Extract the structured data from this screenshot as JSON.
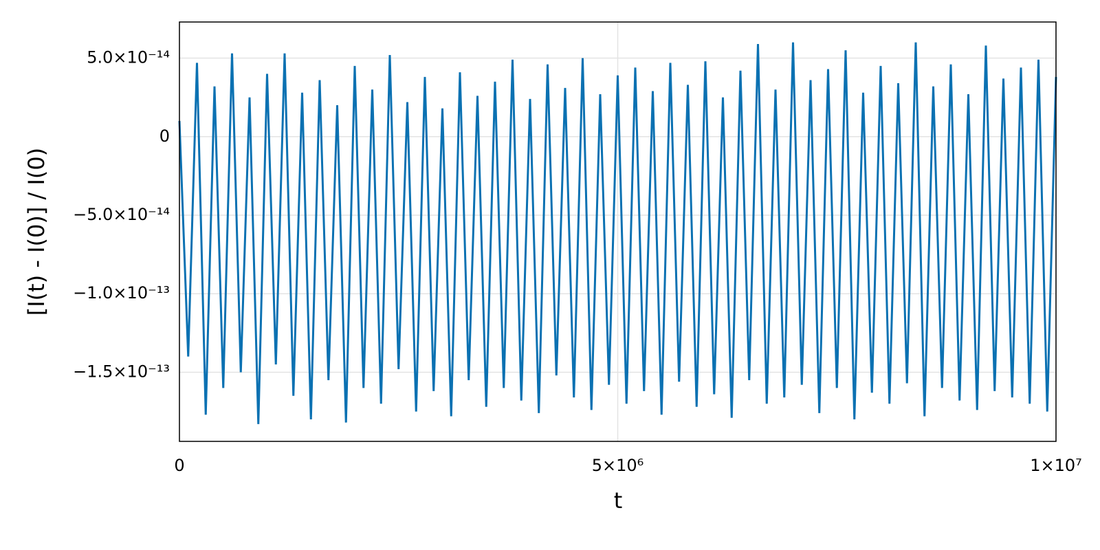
{
  "chart_data": {
    "type": "line",
    "xlabel": "t",
    "ylabel": "[I(t) - I(0)] / I(0)",
    "x": [
      0,
      100000,
      200000,
      300000,
      400000,
      500000,
      600000,
      700000,
      800000,
      900000,
      1000000,
      1100000,
      1200000,
      1300000,
      1400000,
      1500000,
      1600000,
      1700000,
      1800000,
      1900000,
      2000000,
      2100000,
      2200000,
      2300000,
      2400000,
      2500000,
      2600000,
      2700000,
      2800000,
      2900000,
      3000000,
      3100000,
      3200000,
      3300000,
      3400000,
      3500000,
      3600000,
      3700000,
      3800000,
      3900000,
      4000000,
      4100000,
      4200000,
      4300000,
      4400000,
      4500000,
      4600000,
      4700000,
      4800000,
      4900000,
      5000000,
      5100000,
      5200000,
      5300000,
      5400000,
      5500000,
      5600000,
      5700000,
      5800000,
      5900000,
      6000000,
      6100000,
      6200000,
      6300000,
      6400000,
      6500000,
      6600000,
      6700000,
      6800000,
      6900000,
      7000000,
      7100000,
      7200000,
      7300000,
      7400000,
      7500000,
      7600000,
      7700000,
      7800000,
      7900000,
      8000000,
      8100000,
      8200000,
      8300000,
      8400000,
      8500000,
      8600000,
      8700000,
      8800000,
      8900000,
      9000000,
      9100000,
      9200000,
      9300000,
      9400000,
      9500000,
      9600000,
      9700000,
      9800000,
      9900000,
      10000000
    ],
    "series": [
      {
        "color": "#0b71b2",
        "values": [
          1e-14,
          -1.4e-13,
          4.7e-14,
          -1.77e-13,
          3.2e-14,
          -1.6e-13,
          5.3e-14,
          -1.5e-13,
          2.5e-14,
          -1.83e-13,
          4e-14,
          -1.45e-13,
          5.3e-14,
          -1.65e-13,
          2.8e-14,
          -1.8e-13,
          3.6e-14,
          -1.55e-13,
          2e-14,
          -1.82e-13,
          4.5e-14,
          -1.6e-13,
          3e-14,
          -1.7e-13,
          5.2e-14,
          -1.48e-13,
          2.2e-14,
          -1.75e-13,
          3.8e-14,
          -1.62e-13,
          1.8e-14,
          -1.78e-13,
          4.1e-14,
          -1.55e-13,
          2.6e-14,
          -1.72e-13,
          3.5e-14,
          -1.6e-13,
          4.9e-14,
          -1.68e-13,
          2.4e-14,
          -1.76e-13,
          4.6e-14,
          -1.52e-13,
          3.1e-14,
          -1.66e-13,
          5e-14,
          -1.74e-13,
          2.7e-14,
          -1.58e-13,
          3.9e-14,
          -1.7e-13,
          4.4e-14,
          -1.62e-13,
          2.9e-14,
          -1.77e-13,
          4.7e-14,
          -1.56e-13,
          3.3e-14,
          -1.72e-13,
          4.8e-14,
          -1.64e-13,
          2.5e-14,
          -1.79e-13,
          4.2e-14,
          -1.55e-13,
          5.9e-14,
          -1.7e-13,
          3e-14,
          -1.66e-13,
          6e-14,
          -1.58e-13,
          3.6e-14,
          -1.76e-13,
          4.3e-14,
          -1.6e-13,
          5.5e-14,
          -1.8e-13,
          2.8e-14,
          -1.63e-13,
          4.5e-14,
          -1.7e-13,
          3.4e-14,
          -1.57e-13,
          6e-14,
          -1.78e-13,
          3.2e-14,
          -1.6e-13,
          4.6e-14,
          -1.68e-13,
          2.7e-14,
          -1.74e-13,
          5.8e-14,
          -1.62e-13,
          3.7e-14,
          -1.66e-13,
          4.4e-14,
          -1.7e-13,
          4.9e-14,
          -1.75e-13,
          3.8e-14
        ]
      }
    ],
    "xlim": [
      0,
      10000000
    ],
    "xticks": [
      0,
      {
        "value": 5000000,
        "label": "5×10⁶"
      },
      {
        "value": 10000000,
        "label": "1×10⁷"
      }
    ],
    "ylim": [
      -1.94e-13,
      7.3e-14
    ],
    "yticks": [
      {
        "value": -1.5e-13,
        "label": "−1.5×10⁻¹³"
      },
      {
        "value": -1e-13,
        "label": "−1.0×10⁻¹³"
      },
      {
        "value": -5e-14,
        "label": "−5.0×10⁻¹⁴"
      },
      0,
      {
        "value": 5e-14,
        "label": "5.0×10⁻¹⁴"
      }
    ],
    "grid": true
  }
}
